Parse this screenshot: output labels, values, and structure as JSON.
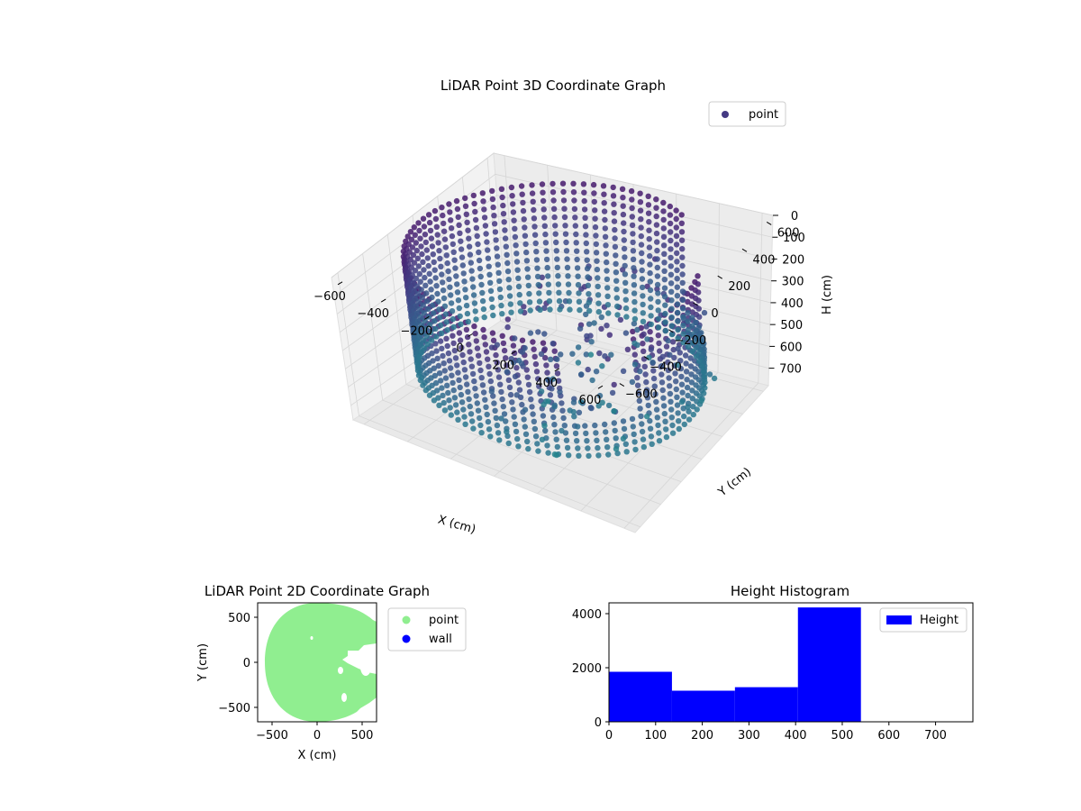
{
  "chart_data": [
    {
      "type": "scatter3d",
      "title": "LiDAR Point 3D Coordinate Graph",
      "xlabel": "X (cm)",
      "ylabel": "Y (cm)",
      "zlabel": "H (cm)",
      "xlim": [
        -650,
        650
      ],
      "ylim": [
        -650,
        650
      ],
      "zlim": [
        0,
        780
      ],
      "z_inverted": true,
      "xticks": [
        "−600",
        "−400",
        "−200",
        "0",
        "200",
        "400",
        "600"
      ],
      "yticks": [
        "−600",
        "−400",
        "−200",
        "0",
        "200",
        "400",
        "600"
      ],
      "zticks": [
        "0",
        "100",
        "200",
        "300",
        "400",
        "500",
        "600",
        "700"
      ],
      "legend": {
        "entries": [
          {
            "label": "point",
            "color": "#443a83"
          }
        ],
        "placement": "top-right"
      },
      "colormap": "viridis",
      "grid": true,
      "description_of_shape": "cylindrical wall of points radius ~600 cm, height 0-620 cm, partially occluded on the +X side"
    },
    {
      "type": "scatter",
      "title": "LiDAR Point 2D Coordinate Graph",
      "xlabel": "X (cm)",
      "ylabel": "Y (cm)",
      "xlim": [
        -660,
        660
      ],
      "ylim": [
        -660,
        660
      ],
      "xticks": [
        "−500",
        "0",
        "500"
      ],
      "yticks": [
        "500",
        "0",
        "−500"
      ],
      "series": [
        {
          "name": "point",
          "color": "#90ee90"
        },
        {
          "name": "wall",
          "color": "#0000ff"
        }
      ],
      "legend": {
        "placement": "outside-right"
      },
      "grid": false
    },
    {
      "type": "bar",
      "title": "Height Histogram",
      "xlim": [
        0,
        780
      ],
      "ylim": [
        0,
        4400
      ],
      "xticks": [
        "0",
        "100",
        "200",
        "300",
        "400",
        "500",
        "600",
        "700"
      ],
      "yticks": [
        "0",
        "2000",
        "4000"
      ],
      "bins": [
        {
          "x0": 0,
          "x1": 135,
          "count": 1850
        },
        {
          "x0": 135,
          "x1": 270,
          "count": 1150
        },
        {
          "x0": 270,
          "x1": 405,
          "count": 1280
        },
        {
          "x0": 405,
          "x1": 540,
          "count": 4230
        },
        {
          "x0": 540,
          "x1": 675,
          "count": 0
        },
        {
          "x0": 675,
          "x1": 780,
          "count": 0
        }
      ],
      "series": [
        {
          "name": "Height",
          "color": "#0000ff"
        }
      ],
      "legend": {
        "placement": "top-right"
      },
      "grid": false
    }
  ]
}
